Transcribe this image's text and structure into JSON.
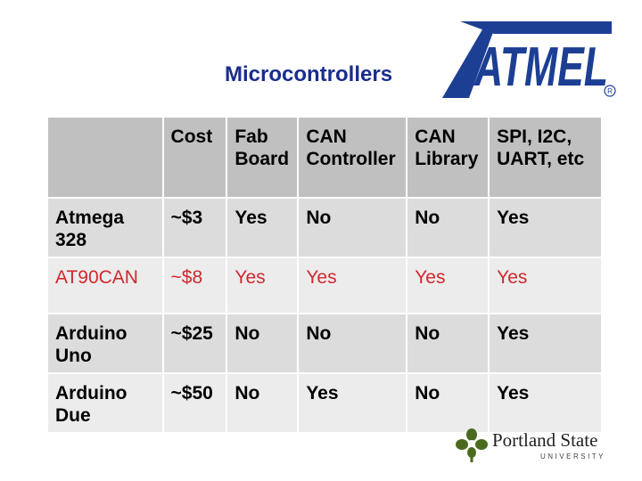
{
  "title": "Microcontrollers",
  "logo": {
    "text": "ATMEL",
    "registered": "®",
    "color": "#1c3f94"
  },
  "table": {
    "headers": [
      "",
      "Cost",
      "Fab Board",
      "CAN Controller",
      "CAN Library",
      "SPI, I2C, UART, etc"
    ],
    "rows": [
      [
        "Atmega 328",
        "~$3",
        "Yes",
        "No",
        "No",
        "Yes"
      ],
      [
        "AT90CAN",
        "~$8",
        "Yes",
        "Yes",
        "Yes",
        "Yes"
      ],
      [
        "Arduino Uno",
        "~$25",
        "No",
        "No",
        "No",
        "Yes"
      ],
      [
        "Arduino Due",
        "~$50",
        "No",
        "Yes",
        "No",
        "Yes"
      ]
    ]
  },
  "footer": {
    "name": "Portland State",
    "sub": "UNIVERSITY",
    "icon": "psu-leaf-icon",
    "icon_color": "#4a6b1e"
  }
}
